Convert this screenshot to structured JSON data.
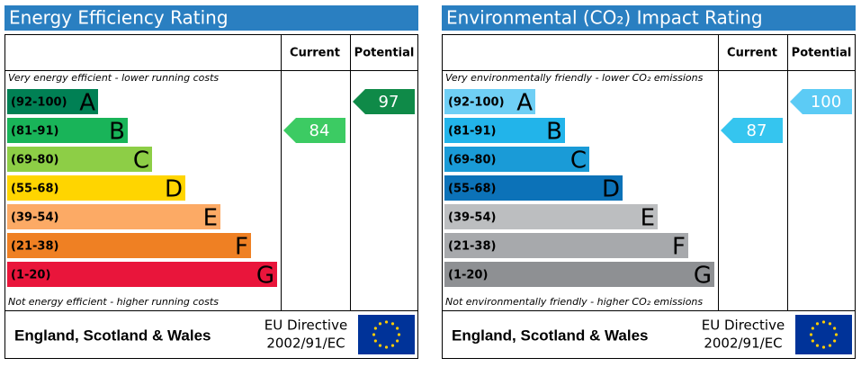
{
  "chart_data": [
    {
      "type": "epc",
      "title": "Energy Efficiency Rating",
      "columns": [
        "Current",
        "Potential"
      ],
      "top_note": "Very energy efficient - lower running costs",
      "bottom_note": "Not energy efficient - higher running costs",
      "bands": [
        {
          "range": "(92-100)",
          "letter": "A",
          "color": "#008054"
        },
        {
          "range": "(81-91)",
          "letter": "B",
          "color": "#19b459"
        },
        {
          "range": "(69-80)",
          "letter": "C",
          "color": "#8dce46"
        },
        {
          "range": "(55-68)",
          "letter": "D",
          "color": "#ffd500"
        },
        {
          "range": "(39-54)",
          "letter": "E",
          "color": "#fcaa65"
        },
        {
          "range": "(21-38)",
          "letter": "F",
          "color": "#ef8023"
        },
        {
          "range": "(1-20)",
          "letter": "G",
          "color": "#e9153b"
        }
      ],
      "current": 84,
      "current_color": "#3ccb63",
      "potential": 97,
      "potential_color": "#0f8a48",
      "footer": {
        "region": "England, Scotland & Wales",
        "directive": [
          "EU Directive",
          "2002/91/EC"
        ]
      }
    },
    {
      "type": "epc",
      "title": "Environmental (CO₂) Impact Rating",
      "columns": [
        "Current",
        "Potential"
      ],
      "top_note": "Very environmentally friendly - lower CO₂ emissions",
      "bottom_note": "Not environmentally friendly - higher CO₂ emissions",
      "bands": [
        {
          "range": "(92-100)",
          "letter": "A",
          "color": "#6fcff5"
        },
        {
          "range": "(81-91)",
          "letter": "B",
          "color": "#22b4ea"
        },
        {
          "range": "(69-80)",
          "letter": "C",
          "color": "#1a9bd7"
        },
        {
          "range": "(55-68)",
          "letter": "D",
          "color": "#0c72b8"
        },
        {
          "range": "(39-54)",
          "letter": "E",
          "color": "#bcbec0"
        },
        {
          "range": "(21-38)",
          "letter": "F",
          "color": "#a7a9ac"
        },
        {
          "range": "(1-20)",
          "letter": "G",
          "color": "#8e9093"
        }
      ],
      "current": 87,
      "current_color": "#35c5ef",
      "potential": 100,
      "potential_color": "#5ccbf5",
      "footer": {
        "region": "England, Scotland & Wales",
        "directive": [
          "EU Directive",
          "2002/91/EC"
        ]
      }
    }
  ]
}
